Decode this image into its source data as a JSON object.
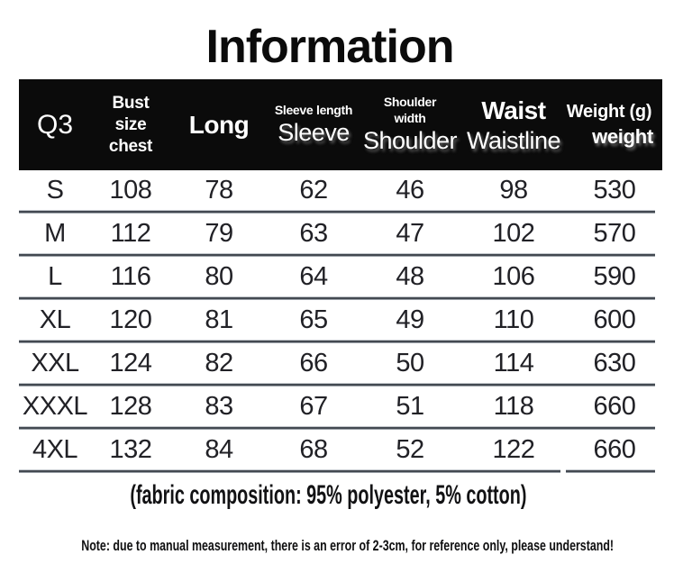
{
  "title": "Information",
  "table": {
    "header": {
      "size": {
        "label": "Q3"
      },
      "bust": {
        "line1": "Bust",
        "line2": "size",
        "line3": "chest"
      },
      "long": {
        "label": "Long"
      },
      "sleeve": {
        "small": "Sleeve length",
        "big": "Sleeve"
      },
      "shoulder": {
        "small_line1": "Shoulder",
        "small_line2": "width",
        "big": "Shoulder"
      },
      "waist": {
        "small": "Waist",
        "big": "Waistline"
      },
      "weight": {
        "small": "Weight (g)",
        "big": "weight"
      }
    },
    "rows": [
      {
        "size": "S",
        "cells": [
          "108",
          "78",
          "62",
          "46",
          "98",
          "530"
        ]
      },
      {
        "size": "M",
        "cells": [
          "112",
          "79",
          "63",
          "47",
          "102",
          "570"
        ]
      },
      {
        "size": "L",
        "cells": [
          "116",
          "80",
          "64",
          "48",
          "106",
          "590"
        ]
      },
      {
        "size": "XL",
        "cells": [
          "120",
          "81",
          "65",
          "49",
          "110",
          "600"
        ]
      },
      {
        "size": "XXL",
        "cells": [
          "124",
          "82",
          "66",
          "50",
          "114",
          "630"
        ]
      },
      {
        "size": "XXXL",
        "cells": [
          "128",
          "83",
          "67",
          "51",
          "118",
          "660"
        ]
      },
      {
        "size": "4XL",
        "cells": [
          "132",
          "84",
          "68",
          "52",
          "122",
          "660"
        ]
      }
    ]
  },
  "footer": {
    "fabric_note": "(fabric composition: 95% polyester, 5% cotton)",
    "measurement_note": "Note: due to manual measurement, there is an error of 2-3cm, for reference only, please understand!"
  },
  "colors": {
    "header_bg": "#0b0b0b",
    "header_text": "#ffffff",
    "body_text": "#212126",
    "separator": "#434951"
  },
  "chart_data": {
    "type": "table",
    "title": "Information",
    "columns": [
      "Size (Q3)",
      "Bust size chest",
      "Long",
      "Sleeve length",
      "Shoulder width",
      "Waistline",
      "Weight (g)"
    ],
    "rows": [
      [
        "S",
        108,
        78,
        62,
        46,
        98,
        530
      ],
      [
        "M",
        112,
        79,
        63,
        47,
        102,
        570
      ],
      [
        "L",
        116,
        80,
        64,
        48,
        106,
        590
      ],
      [
        "XL",
        120,
        81,
        65,
        49,
        110,
        600
      ],
      [
        "XXL",
        124,
        82,
        66,
        50,
        114,
        630
      ],
      [
        "XXXL",
        128,
        83,
        67,
        51,
        118,
        660
      ],
      [
        "4XL",
        132,
        84,
        68,
        52,
        122,
        660
      ]
    ]
  }
}
